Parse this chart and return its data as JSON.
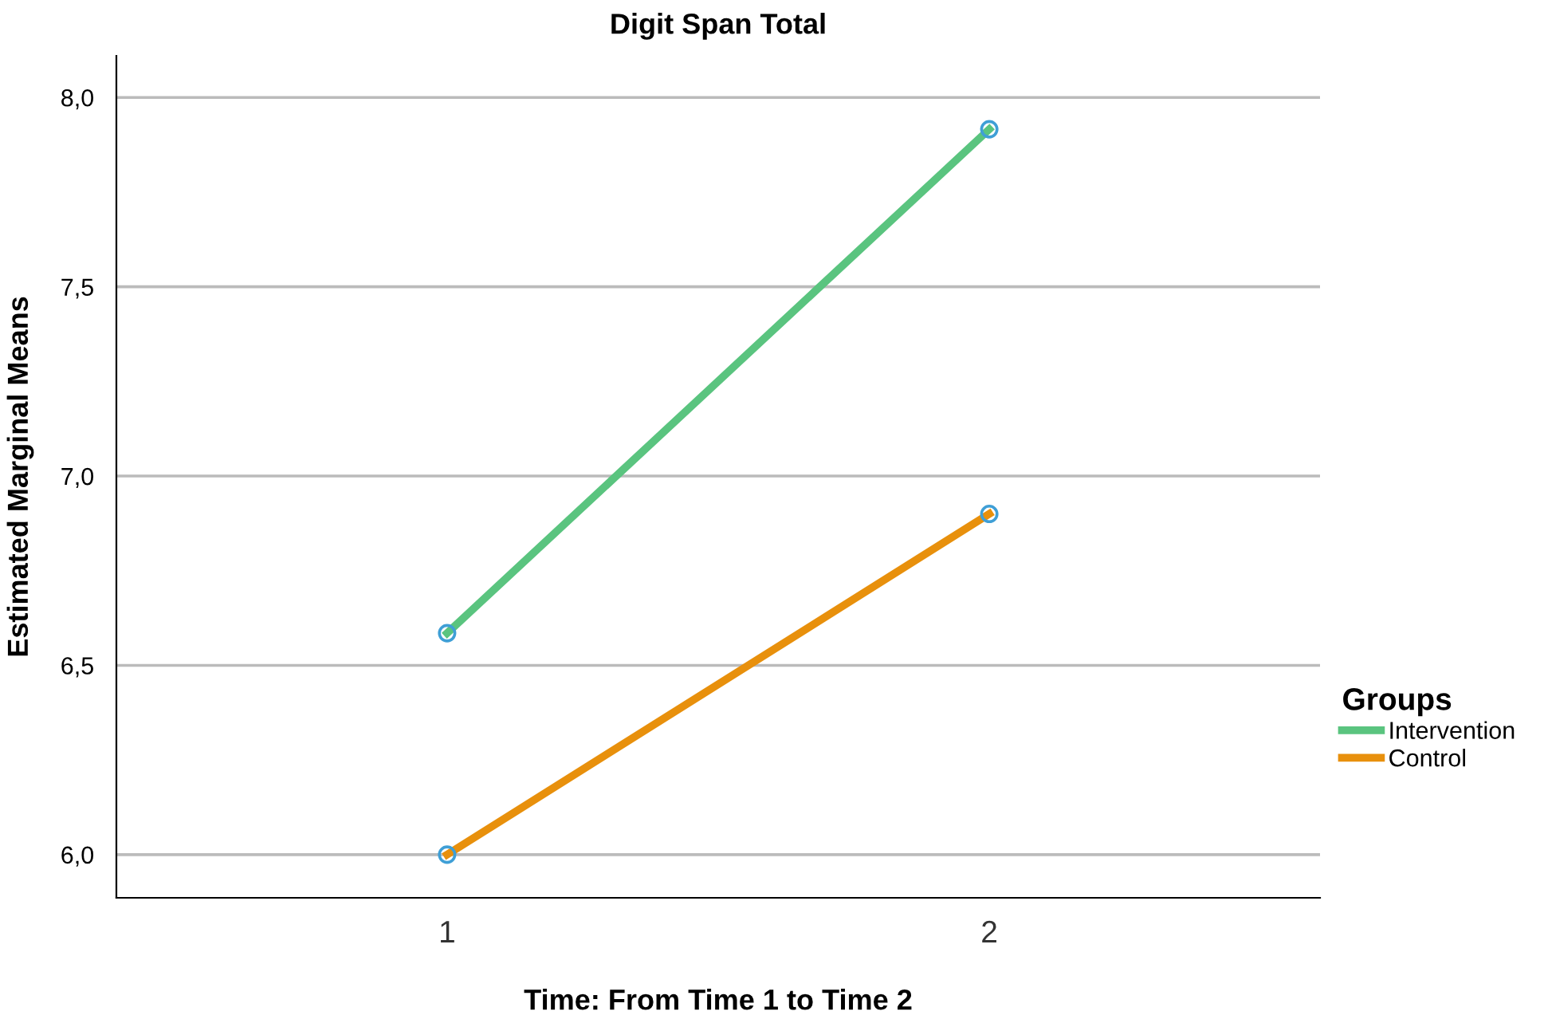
{
  "chart_data": {
    "type": "line",
    "title": "Digit Span Total",
    "xlabel": "Time: From Time 1 to Time 2",
    "ylabel": "Estimated Marginal Means",
    "legend_title": "Groups",
    "categories": [
      "1",
      "2"
    ],
    "series": [
      {
        "name": "Intervention",
        "color": "#5ac47f",
        "values": [
          6.585,
          7.916
        ]
      },
      {
        "name": "Control",
        "color": "#e8900c",
        "values": [
          6.0,
          6.9
        ]
      }
    ],
    "ylim": [
      5.886,
      8.11
    ],
    "yticks": [
      {
        "value": 6.0,
        "label": "6,0"
      },
      {
        "value": 6.5,
        "label": "6,5"
      },
      {
        "value": 7.0,
        "label": "7,0"
      },
      {
        "value": 7.5,
        "label": "7,5"
      },
      {
        "value": 8.0,
        "label": "8,0"
      }
    ],
    "grid": "y",
    "legend": "right",
    "marker": "circle",
    "line_style": "solid"
  }
}
